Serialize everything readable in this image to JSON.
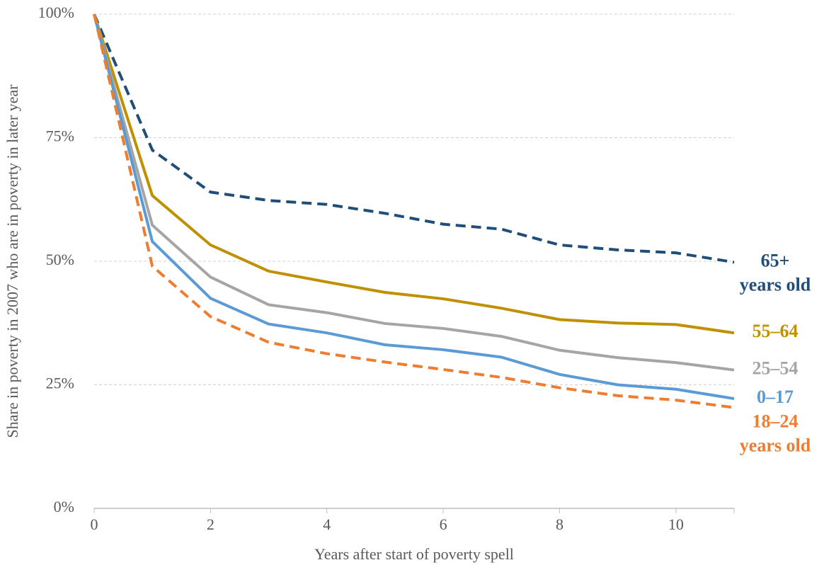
{
  "chart_data": {
    "type": "line",
    "x_label": "Years after start of poverty spell",
    "y_label": "Share in poverty in 2007 who are in poverty in later year",
    "x": [
      0,
      1,
      2,
      3,
      4,
      5,
      6,
      7,
      8,
      9,
      10,
      11
    ],
    "xlim": [
      0,
      11
    ],
    "xticks": [
      0,
      2,
      4,
      6,
      8,
      10
    ],
    "ylim": [
      0,
      100
    ],
    "yticks": [
      {
        "value": 0,
        "label": "0%"
      },
      {
        "value": 25,
        "label": "25%"
      },
      {
        "value": 50,
        "label": "50%"
      },
      {
        "value": 75,
        "label": "75%"
      },
      {
        "value": 100,
        "label": "100%"
      }
    ],
    "grid": true,
    "series": [
      {
        "name": "65+",
        "note": "years old",
        "color": "#1f4e79",
        "dashed": true,
        "values": [
          100,
          72.5,
          64,
          62.3,
          61.5,
          59.7,
          57.5,
          56.5,
          53.3,
          52.3,
          51.7,
          49.8
        ]
      },
      {
        "name": "55–64",
        "color": "#bf9000",
        "dashed": false,
        "values": [
          100,
          63.3,
          53.3,
          48,
          45.8,
          43.7,
          42.4,
          40.5,
          38.2,
          37.5,
          37.2,
          35.5
        ]
      },
      {
        "name": "25–54",
        "color": "#a5a5a5",
        "dashed": false,
        "values": [
          100,
          57.3,
          46.8,
          41.2,
          39.6,
          37.4,
          36.4,
          34.8,
          32,
          30.5,
          29.5,
          28
        ]
      },
      {
        "name": "0–17",
        "color": "#5b9bd5",
        "dashed": false,
        "values": [
          100,
          54,
          42.5,
          37.3,
          35.5,
          33.1,
          32.1,
          30.6,
          27.1,
          25,
          24.1,
          22.2
        ]
      },
      {
        "name": "18–24",
        "note": "years old",
        "color": "#ed7d31",
        "dashed": true,
        "values": [
          100,
          49,
          38.8,
          33.6,
          31.3,
          29.6,
          28.1,
          26.5,
          24.4,
          22.8,
          21.9,
          20.4
        ]
      }
    ]
  }
}
